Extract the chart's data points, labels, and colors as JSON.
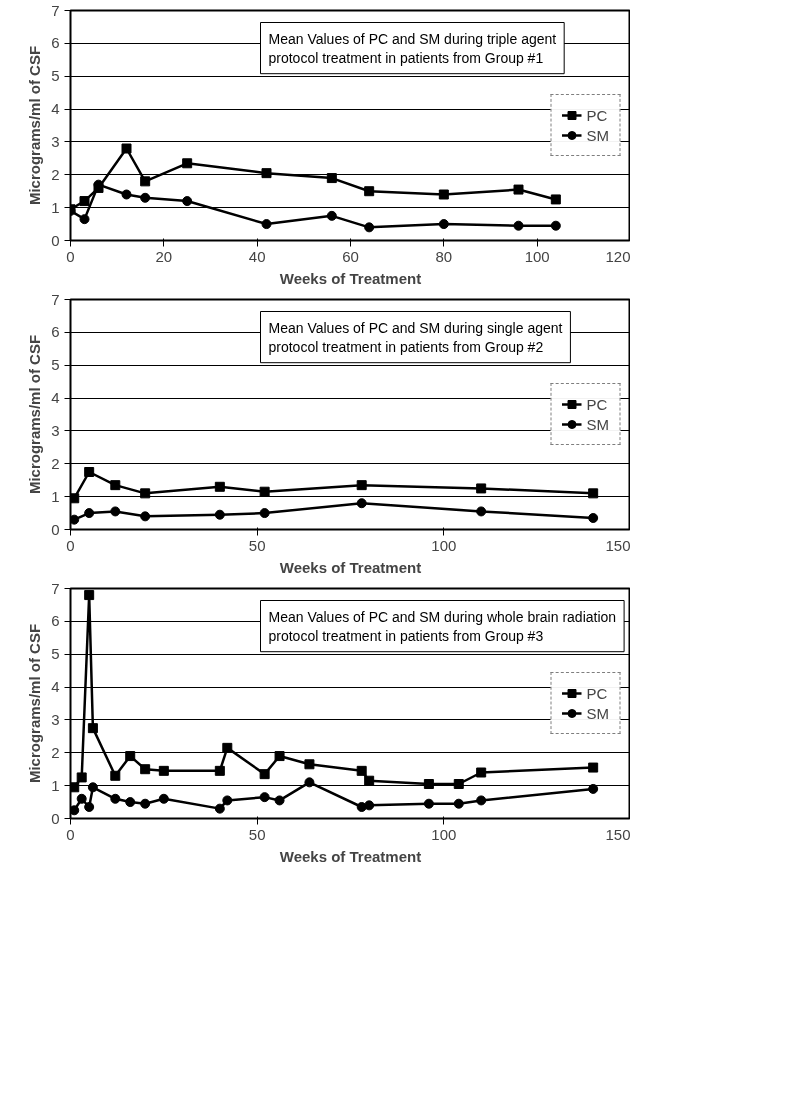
{
  "chart_data": [
    {
      "type": "line",
      "title": "Mean Values of PC and SM during triple agent\nprotocol treatment in patients from Group #1",
      "xlabel": "Weeks of Treatment",
      "ylabel": "Micrograms/ml of CSF",
      "xlim": [
        0,
        120
      ],
      "xticks": [
        0,
        20,
        40,
        60,
        80,
        100,
        120
      ],
      "ylim": [
        0,
        7
      ],
      "yticks": [
        0,
        1,
        2,
        3,
        4,
        5,
        6,
        7
      ],
      "grid": "y",
      "legend": "right",
      "series": [
        {
          "name": "PC",
          "color": "#000000",
          "marker": "square",
          "x": [
            0,
            3,
            6,
            12,
            16,
            25,
            42,
            56,
            64,
            80,
            96,
            104
          ],
          "values": [
            0.95,
            1.2,
            1.6,
            2.8,
            1.8,
            2.35,
            2.05,
            1.9,
            1.5,
            1.4,
            1.55,
            1.25
          ]
        },
        {
          "name": "SM",
          "color": "#000000",
          "marker": "circle",
          "x": [
            0,
            3,
            6,
            12,
            16,
            25,
            42,
            56,
            64,
            80,
            96,
            104
          ],
          "values": [
            0.9,
            0.65,
            1.7,
            1.4,
            1.3,
            1.2,
            0.5,
            0.75,
            0.4,
            0.5,
            0.45,
            0.45
          ]
        }
      ]
    },
    {
      "type": "line",
      "title": "Mean Values of PC and SM during single agent\nprotocol treatment in patients from Group #2",
      "xlabel": "Weeks of Treatment",
      "ylabel": "Micrograms/ml of CSF",
      "xlim": [
        0,
        150
      ],
      "xticks": [
        0,
        50,
        100,
        150
      ],
      "ylim": [
        0,
        7
      ],
      "yticks": [
        0,
        1,
        2,
        3,
        4,
        5,
        6,
        7
      ],
      "grid": "y",
      "legend": "right",
      "series": [
        {
          "name": "PC",
          "color": "#000000",
          "marker": "square",
          "x": [
            1,
            5,
            12,
            20,
            40,
            52,
            78,
            110,
            140
          ],
          "values": [
            0.95,
            1.75,
            1.35,
            1.1,
            1.3,
            1.15,
            1.35,
            1.25,
            1.1
          ]
        },
        {
          "name": "SM",
          "color": "#000000",
          "marker": "circle",
          "x": [
            1,
            5,
            12,
            20,
            40,
            52,
            78,
            110,
            140
          ],
          "values": [
            0.3,
            0.5,
            0.55,
            0.4,
            0.45,
            0.5,
            0.8,
            0.55,
            0.35
          ]
        }
      ]
    },
    {
      "type": "line",
      "title": "Mean Values of PC and SM during whole brain radiation\nprotocol treatment in patients from Group #3",
      "xlabel": "Weeks of Treatment",
      "ylabel": "Micrograms/ml of CSF",
      "xlim": [
        0,
        150
      ],
      "xticks": [
        0,
        50,
        100,
        150
      ],
      "ylim": [
        0,
        7
      ],
      "yticks": [
        0,
        1,
        2,
        3,
        4,
        5,
        6,
        7
      ],
      "grid": "y",
      "legend": "right",
      "series": [
        {
          "name": "PC",
          "color": "#000000",
          "marker": "square",
          "x": [
            1,
            3,
            5,
            6,
            12,
            16,
            20,
            25,
            40,
            42,
            52,
            56,
            64,
            78,
            80,
            96,
            104,
            110,
            140
          ],
          "values": [
            0.95,
            1.25,
            6.8,
            2.75,
            1.3,
            1.9,
            1.5,
            1.45,
            1.45,
            2.15,
            1.35,
            1.9,
            1.65,
            1.45,
            1.15,
            1.05,
            1.05,
            1.4,
            1.55
          ]
        },
        {
          "name": "SM",
          "color": "#000000",
          "marker": "circle",
          "x": [
            1,
            3,
            5,
            6,
            12,
            16,
            20,
            25,
            40,
            42,
            52,
            56,
            64,
            78,
            80,
            96,
            104,
            110,
            140
          ],
          "values": [
            0.25,
            0.6,
            0.35,
            0.95,
            0.6,
            0.5,
            0.45,
            0.6,
            0.3,
            0.55,
            0.65,
            0.55,
            1.1,
            0.35,
            0.4,
            0.45,
            0.45,
            0.55,
            0.9
          ]
        }
      ]
    }
  ]
}
